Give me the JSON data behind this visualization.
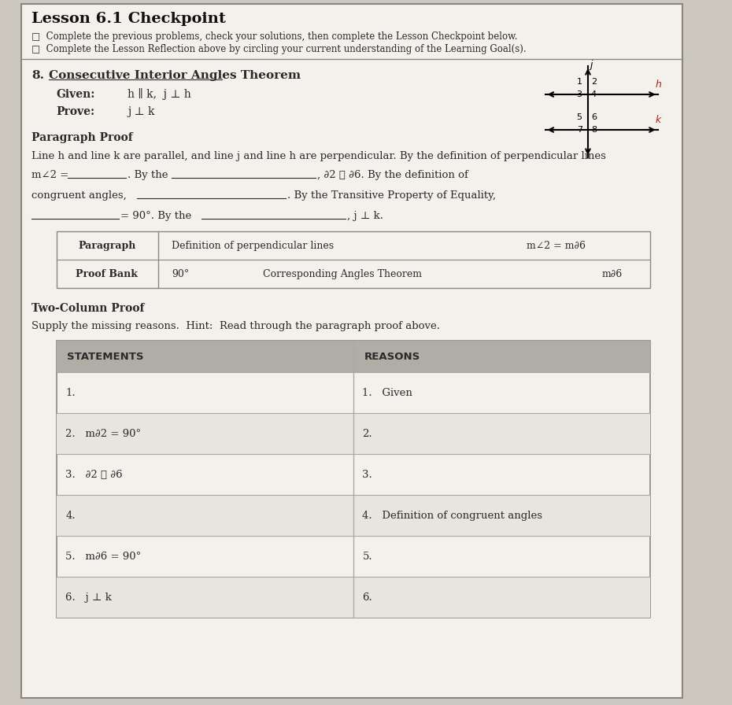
{
  "title": "Lesson 6.1 Checkpoint",
  "bullet1": "Complete the previous problems, check your solutions, then complete the Lesson Checkpoint below.",
  "bullet2": "Complete the Lesson Reflection above by circling your current understanding of the Learning Goal(s).",
  "problem_num": "8.",
  "problem_title": "Consecutive Interior Angles Theorem",
  "given_label": "Given:",
  "given_text": "h ∥ k,  j ⊥ h",
  "prove_label": "Prove:",
  "prove_text": "j ⊥ k",
  "para_proof_title": "Paragraph Proof",
  "para_line1": "Line h and line k are parallel, and line j and line h are perpendicular. By the definition of perpendicular lines",
  "bank_header_left1": "Paragraph",
  "bank_header_left2": "Proof Bank",
  "bank_col1_r1": "Definition of perpendicular lines",
  "bank_col2_r1": "m∠2 = m∂6",
  "bank_col1_r2": "90°",
  "bank_col2_r2": "Corresponding Angles Theorem",
  "bank_col3_r2": "m∂6",
  "two_col_title": "Two-Column Proof",
  "two_col_hint": "Supply the missing reasons.  Hint:  Read through the paragraph proof above.",
  "table_header_left": "STATEMENTS",
  "table_header_right": "REASONS",
  "table_rows": [
    {
      "stmt": "1.",
      "reason": "1.   Given"
    },
    {
      "stmt": "2.   m∂2 = 90°",
      "reason": "2."
    },
    {
      "stmt": "3.   ∂2 ≅ ∂6",
      "reason": "3."
    },
    {
      "stmt": "4.",
      "reason": "4.   Definition of congruent angles"
    },
    {
      "stmt": "5.   m∂6 = 90°",
      "reason": "5."
    },
    {
      "stmt": "6.   j ⊥ k",
      "reason": "6."
    }
  ],
  "bg_color": "#ccc8c0",
  "white": "#f4f1ec",
  "border_color": "#888880",
  "text_color": "#2a2a2a",
  "header_bg": "#b0ada6",
  "table_line_color": "#aaa9a0",
  "title_color": "#111111",
  "red_color": "#aa2222"
}
